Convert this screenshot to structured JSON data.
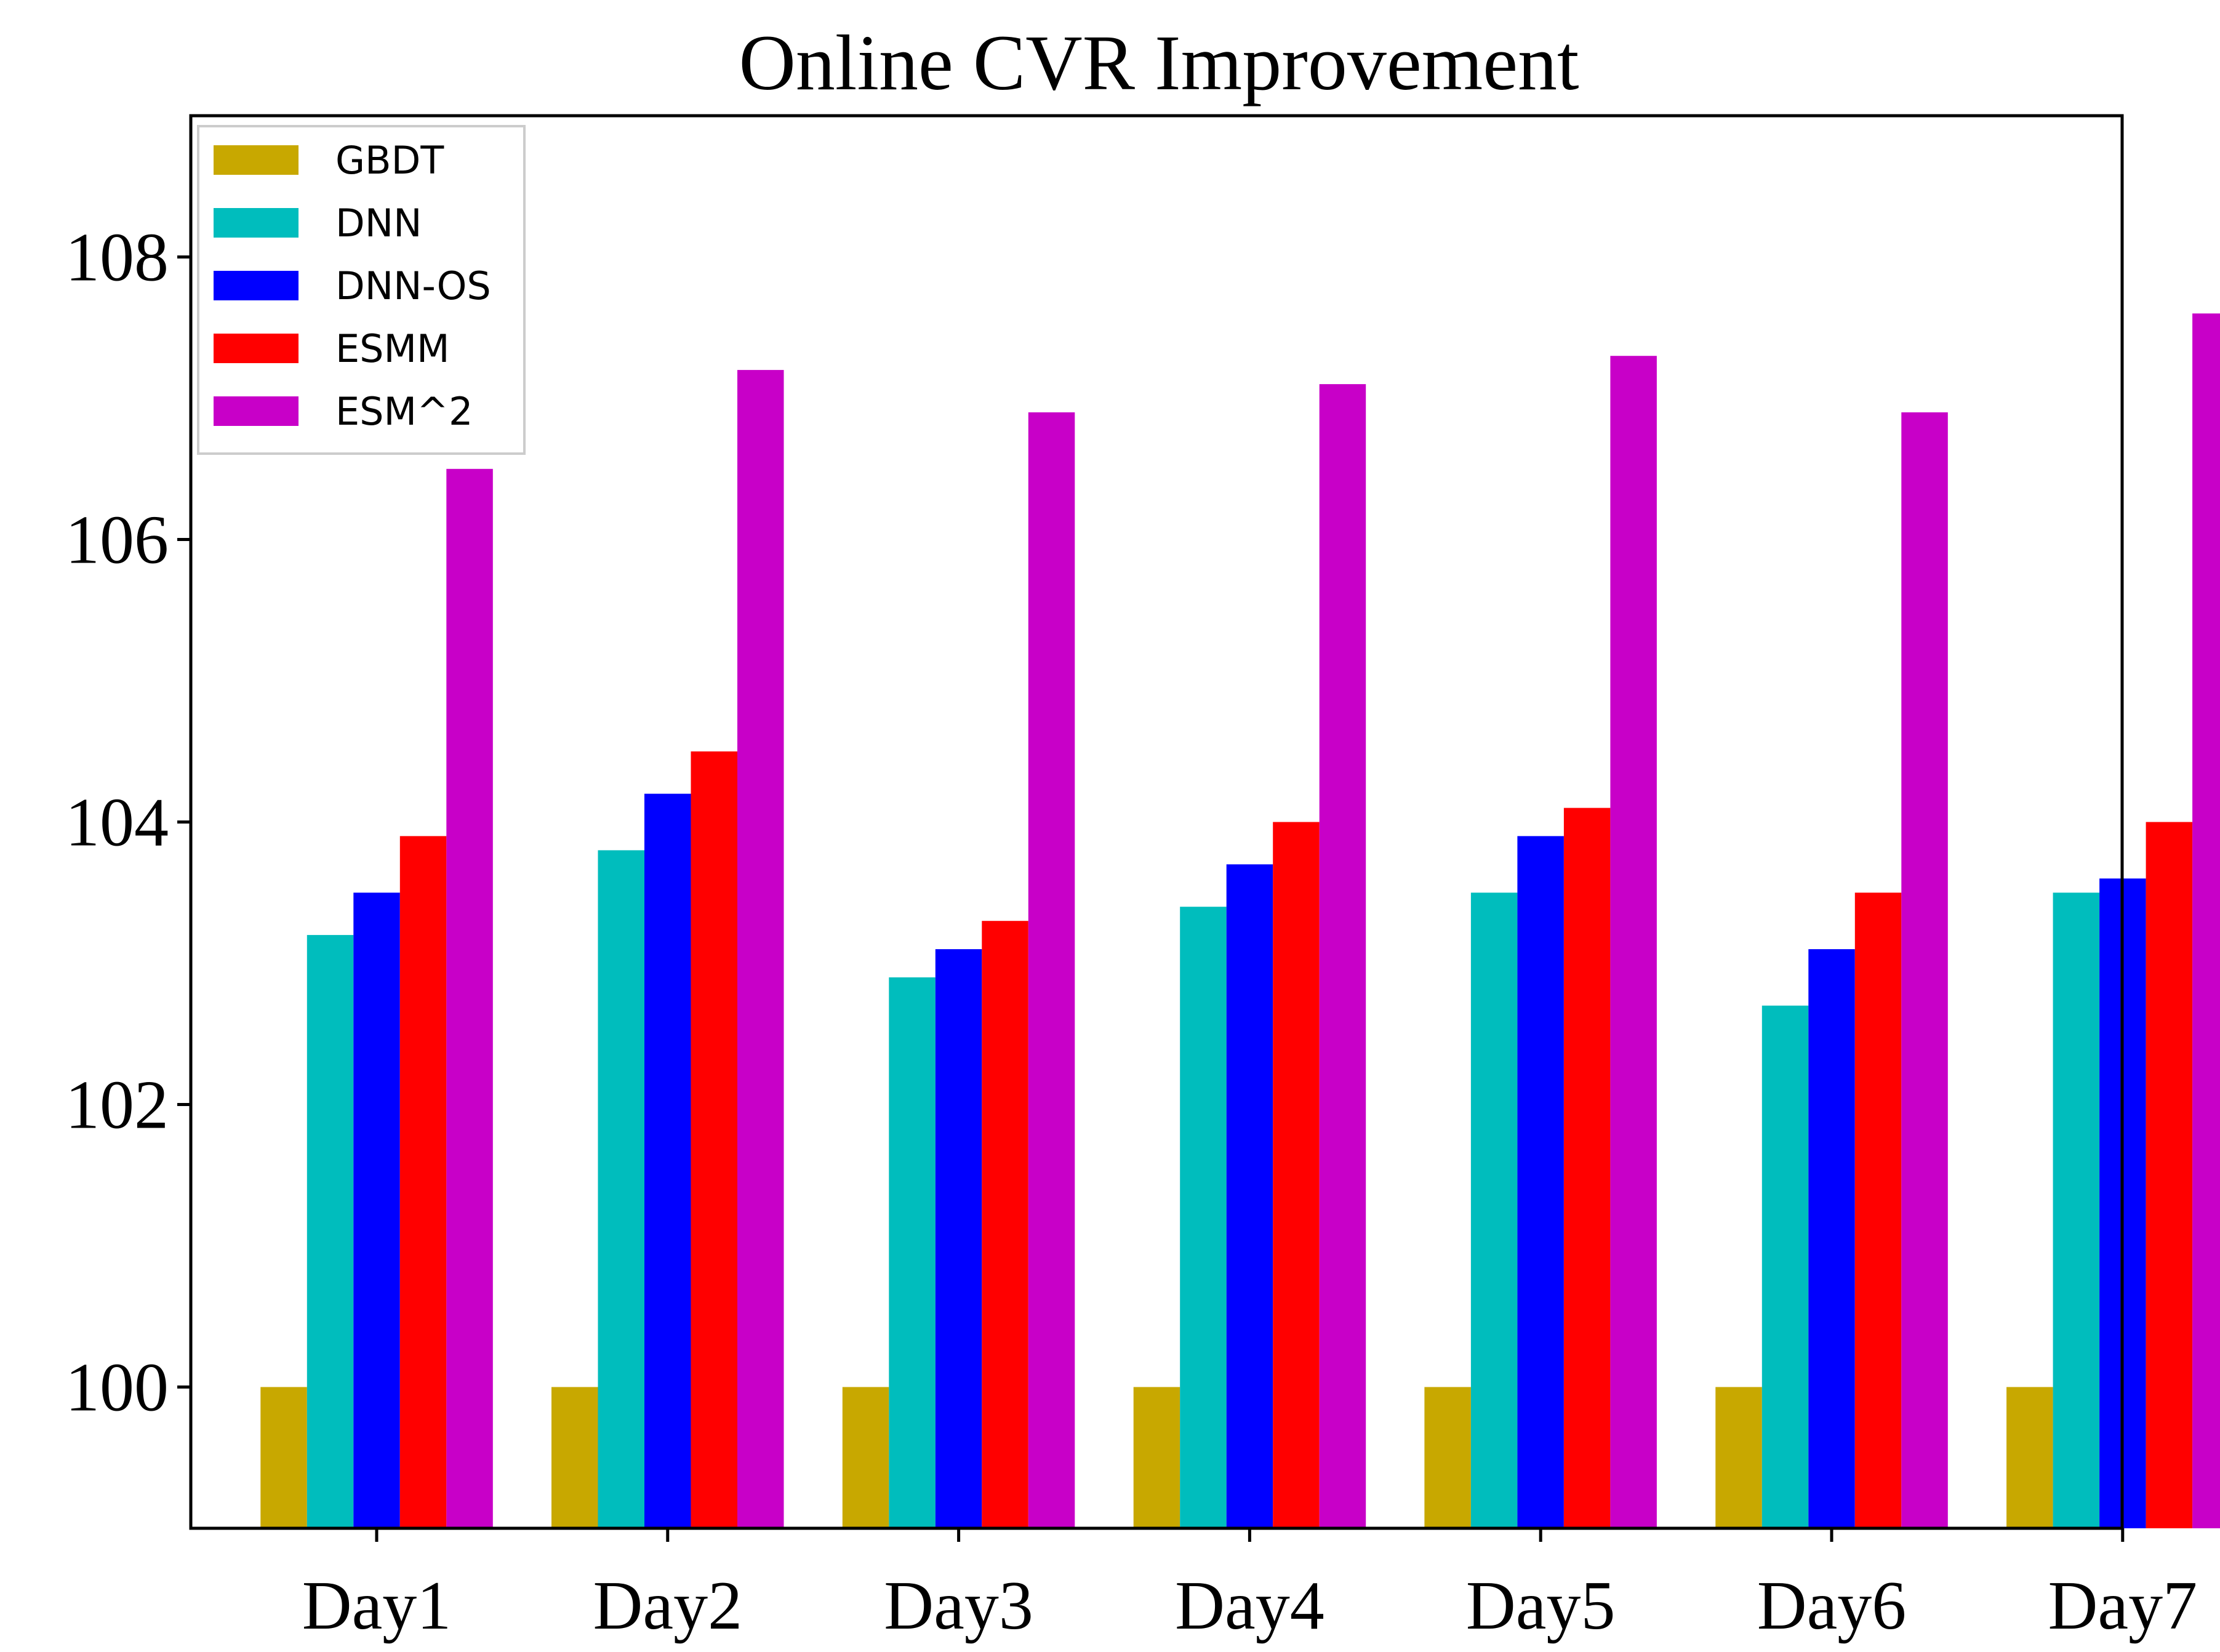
{
  "chart_data": {
    "type": "bar",
    "title": "Online CVR Improvement",
    "xlabel": "",
    "ylabel": "",
    "categories": [
      "Day1",
      "Day2",
      "Day3",
      "Day4",
      "Day5",
      "Day6",
      "Day7"
    ],
    "ylim": [
      99,
      109
    ],
    "yticks": [
      100,
      102,
      104,
      106,
      108
    ],
    "grid": false,
    "legend_position": "top-left",
    "series": [
      {
        "name": "GBDT",
        "color": "#c8a800",
        "values": [
          100,
          100,
          100,
          100,
          100,
          100,
          100
        ]
      },
      {
        "name": "DNN",
        "color": "#00bdbd",
        "values": [
          103.2,
          103.8,
          102.9,
          103.4,
          103.5,
          102.7,
          103.5
        ]
      },
      {
        "name": "DNN-OS",
        "color": "#0000ff",
        "values": [
          103.5,
          104.2,
          103.1,
          103.7,
          103.9,
          103.1,
          103.6
        ]
      },
      {
        "name": "ESMM",
        "color": "#ff0000",
        "values": [
          103.9,
          104.5,
          103.3,
          104.0,
          104.1,
          103.5,
          104.0
        ]
      },
      {
        "name": "ESM^2",
        "color": "#c800c8",
        "values": [
          106.5,
          107.2,
          106.9,
          107.1,
          107.3,
          106.9,
          107.6
        ]
      }
    ]
  }
}
